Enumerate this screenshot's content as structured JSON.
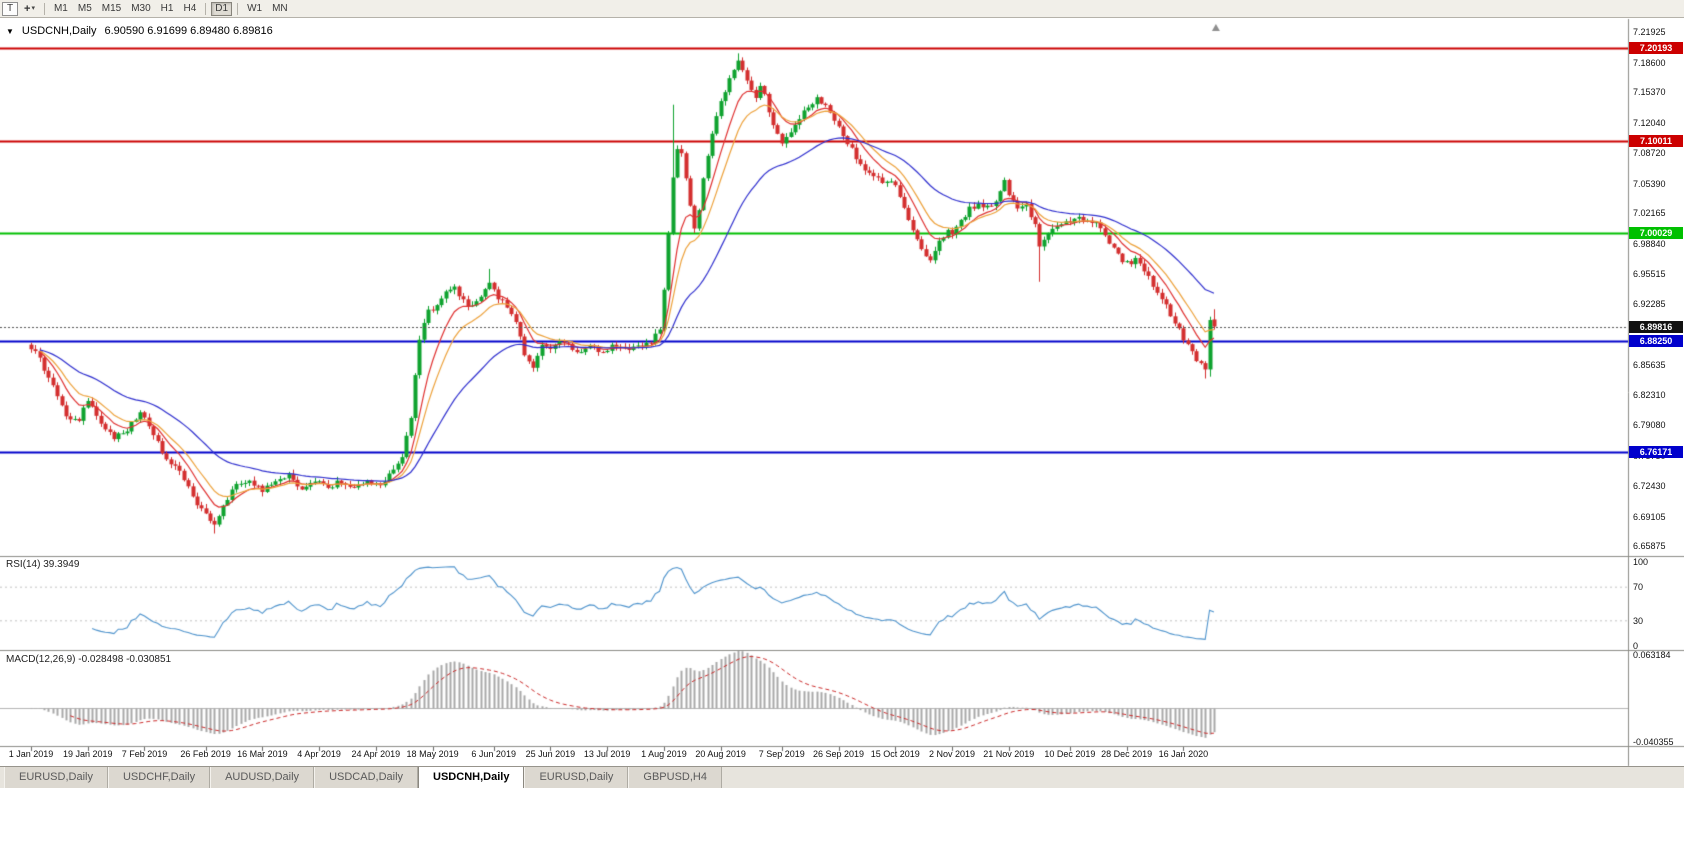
{
  "toolbar": {
    "t_label": "T",
    "timeframes": [
      "M1",
      "M5",
      "M15",
      "M30",
      "H1",
      "H4",
      "D1",
      "W1",
      "MN"
    ],
    "active_timeframe": "D1"
  },
  "chart": {
    "symbol_title": "USDCNH,Daily",
    "quote": "6.90590 6.91699 6.89480 6.89816"
  },
  "chart_data": {
    "type": "candlestick",
    "symbol": "USDCNH",
    "timeframe": "Daily",
    "title": "USDCNH,Daily",
    "ohlc_display": {
      "open": "6.90590",
      "high": "6.91699",
      "low": "6.89480",
      "close": "6.89816"
    },
    "num_candles": 272,
    "y_range": {
      "top": 7.228,
      "bottom": 6.648
    },
    "price_keyframes": [
      [
        0,
        6.876
      ],
      [
        2,
        6.862
      ],
      [
        5,
        6.835
      ],
      [
        8,
        6.8
      ],
      [
        11,
        6.796
      ],
      [
        13,
        6.82
      ],
      [
        16,
        6.795
      ],
      [
        19,
        6.776
      ],
      [
        22,
        6.786
      ],
      [
        25,
        6.805
      ],
      [
        28,
        6.78
      ],
      [
        31,
        6.752
      ],
      [
        34,
        6.74
      ],
      [
        37,
        6.712
      ],
      [
        40,
        6.692
      ],
      [
        42,
        6.68
      ],
      [
        44,
        6.703
      ],
      [
        47,
        6.726
      ],
      [
        50,
        6.731
      ],
      [
        53,
        6.718
      ],
      [
        56,
        6.731
      ],
      [
        59,
        6.737
      ],
      [
        62,
        6.719
      ],
      [
        65,
        6.731
      ],
      [
        68,
        6.724
      ],
      [
        71,
        6.729
      ],
      [
        74,
        6.723
      ],
      [
        77,
        6.73
      ],
      [
        80,
        6.727
      ],
      [
        83,
        6.741
      ],
      [
        85,
        6.755
      ],
      [
        87,
        6.8
      ],
      [
        88,
        6.845
      ],
      [
        89,
        6.885
      ],
      [
        91,
        6.915
      ],
      [
        93,
        6.922
      ],
      [
        95,
        6.935
      ],
      [
        97,
        6.94
      ],
      [
        99,
        6.925
      ],
      [
        101,
        6.921
      ],
      [
        103,
        6.93
      ],
      [
        105,
        6.944
      ],
      [
        107,
        6.93
      ],
      [
        109,
        6.921
      ],
      [
        111,
        6.905
      ],
      [
        113,
        6.868
      ],
      [
        115,
        6.852
      ],
      [
        117,
        6.88
      ],
      [
        119,
        6.874
      ],
      [
        122,
        6.882
      ],
      [
        125,
        6.869
      ],
      [
        128,
        6.878
      ],
      [
        131,
        6.871
      ],
      [
        134,
        6.879
      ],
      [
        137,
        6.872
      ],
      [
        140,
        6.877
      ],
      [
        142,
        6.879
      ],
      [
        144,
        6.896
      ],
      [
        145,
        6.94
      ],
      [
        146,
        7.0
      ],
      [
        147,
        7.06
      ],
      [
        148,
        7.092
      ],
      [
        149,
        7.086
      ],
      [
        150,
        7.058
      ],
      [
        151,
        7.032
      ],
      [
        152,
        7.006
      ],
      [
        153,
        7.028
      ],
      [
        154,
        7.058
      ],
      [
        155,
        7.082
      ],
      [
        156,
        7.108
      ],
      [
        157,
        7.128
      ],
      [
        158,
        7.144
      ],
      [
        159,
        7.154
      ],
      [
        160,
        7.168
      ],
      [
        162,
        7.186
      ],
      [
        164,
        7.168
      ],
      [
        166,
        7.148
      ],
      [
        167,
        7.16
      ],
      [
        168,
        7.15
      ],
      [
        170,
        7.118
      ],
      [
        172,
        7.098
      ],
      [
        174,
        7.11
      ],
      [
        176,
        7.127
      ],
      [
        178,
        7.139
      ],
      [
        180,
        7.147
      ],
      [
        182,
        7.139
      ],
      [
        184,
        7.12
      ],
      [
        185,
        7.114
      ],
      [
        187,
        7.099
      ],
      [
        189,
        7.082
      ],
      [
        191,
        7.071
      ],
      [
        193,
        7.061
      ],
      [
        195,
        7.055
      ],
      [
        197,
        7.059
      ],
      [
        198,
        7.051
      ],
      [
        200,
        7.029
      ],
      [
        202,
        7.004
      ],
      [
        204,
        6.98
      ],
      [
        206,
        6.971
      ],
      [
        208,
        6.991
      ],
      [
        210,
        7.001
      ],
      [
        211,
        6.999
      ],
      [
        213,
        7.014
      ],
      [
        215,
        7.027
      ],
      [
        217,
        7.031
      ],
      [
        219,
        7.027
      ],
      [
        221,
        7.034
      ],
      [
        223,
        7.059
      ],
      [
        224,
        7.041
      ],
      [
        226,
        7.029
      ],
      [
        228,
        7.031
      ],
      [
        230,
        7.008
      ],
      [
        231,
        6.984
      ],
      [
        233,
        6.999
      ],
      [
        235,
        7.007
      ],
      [
        237,
        7.011
      ],
      [
        238,
        7.014
      ],
      [
        240,
        7.019
      ],
      [
        242,
        7.014
      ],
      [
        244,
        7.009
      ],
      [
        246,
        6.997
      ],
      [
        248,
        6.984
      ],
      [
        250,
        6.971
      ],
      [
        251,
        6.967
      ],
      [
        253,
        6.971
      ],
      [
        255,
        6.957
      ],
      [
        257,
        6.944
      ],
      [
        259,
        6.929
      ],
      [
        261,
        6.911
      ],
      [
        263,
        6.894
      ],
      [
        265,
        6.877
      ],
      [
        267,
        6.861
      ],
      [
        269,
        6.85
      ],
      [
        270,
        6.908
      ],
      [
        271,
        6.898
      ]
    ],
    "wick_overrides": [
      {
        "i": 42,
        "low": 6.6725
      },
      {
        "i": 105,
        "high": 6.961
      },
      {
        "i": 147,
        "high": 7.14
      },
      {
        "i": 162,
        "high": 7.196
      },
      {
        "i": 231,
        "low": 6.947
      },
      {
        "i": 269,
        "low": 6.8415
      },
      {
        "i": 270,
        "low": 6.8435
      }
    ],
    "y_axis_ticks": [
      "7.21925",
      "7.18600",
      "7.15370",
      "7.12040",
      "7.08720",
      "7.05390",
      "7.02165",
      "6.98840",
      "6.95515",
      "6.92285",
      "6.85635",
      "6.82310",
      "6.79080",
      "6.75750",
      "6.72430",
      "6.69105",
      "6.65875"
    ],
    "horizontal_lines": [
      {
        "price": 7.20193,
        "label": "7.20193",
        "color": "#cc0000"
      },
      {
        "price": 7.10011,
        "label": "7.10011",
        "color": "#cc0000"
      },
      {
        "price": 7.00029,
        "label": "7.00029",
        "color": "#00c000"
      },
      {
        "price": 6.8825,
        "label": "6.88250",
        "color": "#0000cc"
      },
      {
        "price": 6.76171,
        "label": "6.76171",
        "color": "#0000cc"
      }
    ],
    "current_price": {
      "value": 6.89816,
      "label": "6.89816",
      "badge_color": "#111111"
    },
    "moving_averages": [
      {
        "name": "fast-ma",
        "type": "ema",
        "period": 8,
        "color": "#e03232"
      },
      {
        "name": "mid-ma",
        "type": "ema",
        "period": 13,
        "color": "#eda23c"
      },
      {
        "name": "slow-ma",
        "type": "ema",
        "period": 34,
        "color": "#3030cf"
      }
    ],
    "candle_colors": {
      "up": "#0fa32f",
      "down": "#d42f2f"
    },
    "x_axis_labels": [
      "1 Jan 2019",
      "19 Jan 2019",
      "7 Feb 2019",
      "26 Feb 2019",
      "16 Mar 2019",
      "4 Apr 2019",
      "24 Apr 2019",
      "18 May 2019",
      "6 Jun 2019",
      "25 Jun 2019",
      "13 Jul 2019",
      "1 Aug 2019",
      "20 Aug 2019",
      "7 Sep 2019",
      "26 Sep 2019",
      "15 Oct 2019",
      "2 Nov 2019",
      "21 Nov 2019",
      "10 Dec 2019",
      "28 Dec 2019",
      "16 Jan 2020"
    ],
    "x_label_indices": [
      0,
      13,
      26,
      40,
      53,
      66,
      79,
      92,
      106,
      119,
      132,
      145,
      158,
      172,
      185,
      198,
      211,
      224,
      238,
      251,
      264
    ],
    "indicators": {
      "rsi": {
        "label": "RSI(14) 39.3949",
        "period": 14,
        "value": "39.3949",
        "levels": [
          "100",
          "70",
          "30",
          "0"
        ],
        "color": "#4f94cd"
      },
      "macd": {
        "label": "MACD(12,26,9) -0.028498 -0.030851",
        "fast": 12,
        "slow": 26,
        "signal_period": 9,
        "main_value": "-0.028498",
        "signal_value": "-0.030851",
        "axis_max": "0.063184",
        "axis_min": "-0.040355",
        "histogram_color": "#a8a8a8",
        "signal_color": "#cc2a2a"
      }
    }
  },
  "tabs": [
    {
      "label": "EURUSD,Daily",
      "active": false
    },
    {
      "label": "USDCHF,Daily",
      "active": false
    },
    {
      "label": "AUDUSD,Daily",
      "active": false
    },
    {
      "label": "USDCAD,Daily",
      "active": false
    },
    {
      "label": "USDCNH,Daily",
      "active": true
    },
    {
      "label": "EURUSD,Daily",
      "active": false
    },
    {
      "label": "GBPUSD,H4",
      "active": false
    }
  ]
}
